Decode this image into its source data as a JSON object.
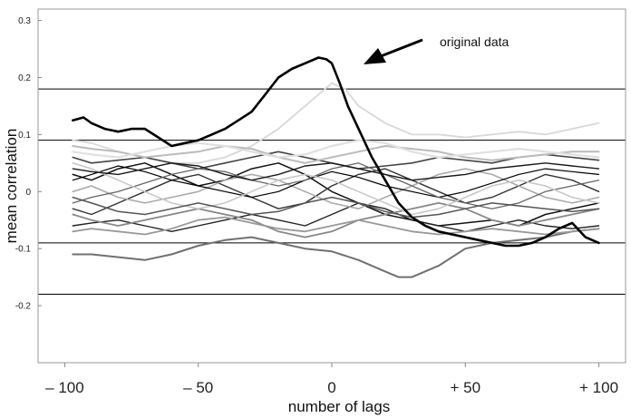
{
  "chart_data": {
    "type": "line",
    "xlabel": "number of lags",
    "ylabel": "mean correlation",
    "xlim": [
      -110,
      110
    ],
    "ylim": [
      -0.3,
      0.32
    ],
    "x_ticks": [
      {
        "value": -100,
        "label": "– 100"
      },
      {
        "value": -50,
        "label": "– 50"
      },
      {
        "value": 0,
        "label": "0"
      },
      {
        "value": 50,
        "label": "+ 50"
      },
      {
        "value": 100,
        "label": "+ 100"
      }
    ],
    "y_ticks": [
      {
        "value": 0.3,
        "label": "0.3"
      },
      {
        "value": 0.2,
        "label": "0.2"
      },
      {
        "value": 0.1,
        "label": "0.1"
      },
      {
        "value": 0,
        "label": "0"
      },
      {
        "value": -0.1,
        "label": "-0.1"
      },
      {
        "value": -0.2,
        "label": "-0.2"
      }
    ],
    "reference_lines": [
      0.18,
      0.09,
      -0.09,
      -0.18
    ],
    "annotation": {
      "text": "original data",
      "x": 10,
      "y": 0.24
    },
    "series": [
      {
        "x": [
          -97,
          -93,
          -90,
          -85,
          -80,
          -75,
          -70,
          -65,
          -60,
          -55,
          -50,
          -45,
          -40,
          -35,
          -30,
          -25,
          -20,
          -15,
          -10,
          -5,
          -2,
          0,
          3,
          6,
          10,
          15,
          20,
          25,
          30,
          35,
          40,
          45,
          50,
          55,
          60,
          65,
          70,
          75,
          80,
          85,
          90,
          95,
          100
        ],
        "values": [
          0.125,
          0.13,
          0.12,
          0.11,
          0.105,
          0.11,
          0.11,
          0.095,
          0.08,
          0.085,
          0.09,
          0.1,
          0.11,
          0.125,
          0.14,
          0.17,
          0.2,
          0.215,
          0.225,
          0.235,
          0.232,
          0.225,
          0.19,
          0.15,
          0.11,
          0.06,
          0.02,
          -0.02,
          -0.045,
          -0.06,
          -0.07,
          -0.075,
          -0.08,
          -0.085,
          -0.09,
          -0.095,
          -0.095,
          -0.09,
          -0.08,
          -0.065,
          -0.055,
          -0.08,
          -0.09
        ],
        "color": "#000000",
        "width": 2.6
      },
      {
        "x": [
          -97,
          -90,
          -80,
          -70,
          -60,
          -50,
          -40,
          -30,
          -20,
          -10,
          0,
          5,
          10,
          20,
          30,
          40,
          50,
          60,
          70,
          80,
          90,
          100
        ],
        "values": [
          0.09,
          0.085,
          0.07,
          0.06,
          0.05,
          0.05,
          0.06,
          0.08,
          0.11,
          0.15,
          0.19,
          0.18,
          0.15,
          0.12,
          0.1,
          0.1,
          0.095,
          0.1,
          0.105,
          0.1,
          0.11,
          0.12
        ],
        "color": "#d8d8d8",
        "width": 1.8
      },
      {
        "x": [
          -97,
          -90,
          -80,
          -70,
          -60,
          -50,
          -40,
          -30,
          -20,
          -10,
          0,
          10,
          20,
          25,
          30,
          40,
          50,
          60,
          70,
          80,
          90,
          100
        ],
        "values": [
          -0.11,
          -0.11,
          -0.115,
          -0.12,
          -0.11,
          -0.095,
          -0.085,
          -0.08,
          -0.09,
          -0.1,
          -0.105,
          -0.12,
          -0.14,
          -0.15,
          -0.15,
          -0.13,
          -0.1,
          -0.09,
          -0.085,
          -0.08,
          -0.07,
          -0.065
        ],
        "color": "#707070",
        "width": 2.0
      },
      {
        "x": [
          -97,
          -90,
          -80,
          -70,
          -60,
          -50,
          -40,
          -30,
          -20,
          -10,
          0,
          10,
          20,
          30,
          40,
          50,
          60,
          70,
          80,
          90,
          100
        ],
        "values": [
          0.03,
          0.02,
          0.04,
          0.05,
          0.03,
          0.01,
          0.02,
          0.04,
          0.05,
          0.03,
          0.0,
          -0.02,
          -0.04,
          -0.05,
          -0.06,
          -0.055,
          -0.05,
          -0.06,
          -0.04,
          -0.03,
          -0.02
        ],
        "color": "#111111",
        "width": 1.5
      },
      {
        "x": [
          -97,
          -90,
          -80,
          -70,
          -60,
          -50,
          -40,
          -30,
          -20,
          -10,
          0,
          10,
          20,
          30,
          40,
          50,
          60,
          70,
          80,
          90,
          100
        ],
        "values": [
          -0.03,
          -0.04,
          -0.02,
          0.0,
          0.02,
          0.03,
          0.01,
          -0.01,
          -0.03,
          -0.02,
          0.01,
          0.03,
          0.04,
          0.02,
          0.0,
          -0.02,
          -0.01,
          0.01,
          0.03,
          0.02,
          0.0
        ],
        "color": "#333333",
        "width": 1.4
      },
      {
        "x": [
          -97,
          -90,
          -80,
          -70,
          -60,
          -50,
          -40,
          -30,
          -20,
          -10,
          0,
          10,
          20,
          30,
          40,
          50,
          60,
          70,
          80,
          90,
          100
        ],
        "values": [
          0.06,
          0.05,
          0.055,
          0.06,
          0.05,
          0.04,
          0.05,
          0.06,
          0.07,
          0.06,
          0.05,
          0.04,
          0.045,
          0.05,
          0.06,
          0.055,
          0.05,
          0.06,
          0.065,
          0.06,
          0.055
        ],
        "color": "#444444",
        "width": 1.6
      },
      {
        "x": [
          -97,
          -90,
          -80,
          -70,
          -60,
          -50,
          -40,
          -30,
          -20,
          -10,
          0,
          10,
          20,
          30,
          40,
          50,
          60,
          70,
          80,
          90,
          100
        ],
        "values": [
          -0.06,
          -0.055,
          -0.05,
          -0.06,
          -0.07,
          -0.06,
          -0.05,
          -0.04,
          -0.05,
          -0.06,
          -0.04,
          -0.02,
          -0.03,
          -0.05,
          -0.06,
          -0.07,
          -0.06,
          -0.05,
          -0.06,
          -0.065,
          -0.06
        ],
        "color": "#222222",
        "width": 1.4
      },
      {
        "x": [
          -97,
          -90,
          -80,
          -70,
          -60,
          -50,
          -40,
          -30,
          -20,
          -10,
          0,
          10,
          20,
          30,
          40,
          50,
          60,
          70,
          80,
          90,
          100
        ],
        "values": [
          0.0,
          0.01,
          -0.01,
          -0.02,
          -0.01,
          0.0,
          0.02,
          0.03,
          0.02,
          0.0,
          -0.02,
          -0.03,
          -0.01,
          0.01,
          0.03,
          0.04,
          0.03,
          0.01,
          -0.01,
          -0.02,
          -0.01
        ],
        "color": "#aaaaaa",
        "width": 1.6
      },
      {
        "x": [
          -97,
          -90,
          -80,
          -70,
          -60,
          -50,
          -40,
          -30,
          -20,
          -10,
          0,
          10,
          20,
          30,
          40,
          50,
          60,
          70,
          80,
          90,
          100
        ],
        "values": [
          0.08,
          0.075,
          0.07,
          0.06,
          0.065,
          0.07,
          0.08,
          0.075,
          0.06,
          0.05,
          0.06,
          0.07,
          0.08,
          0.075,
          0.07,
          0.06,
          0.055,
          0.06,
          0.065,
          0.07,
          0.07
        ],
        "color": "#bbbbbb",
        "width": 2.0
      },
      {
        "x": [
          -97,
          -90,
          -80,
          -70,
          -60,
          -50,
          -40,
          -30,
          -20,
          -10,
          0,
          10,
          20,
          30,
          40,
          50,
          60,
          70,
          80,
          90,
          100
        ],
        "values": [
          -0.04,
          -0.05,
          -0.06,
          -0.05,
          -0.04,
          -0.03,
          -0.04,
          -0.05,
          -0.07,
          -0.08,
          -0.07,
          -0.05,
          -0.04,
          -0.03,
          -0.02,
          -0.03,
          -0.05,
          -0.06,
          -0.05,
          -0.04,
          -0.03
        ],
        "color": "#888888",
        "width": 1.8
      },
      {
        "x": [
          -97,
          -90,
          -80,
          -70,
          -60,
          -50,
          -40,
          -30,
          -20,
          -10,
          0,
          10,
          20,
          30,
          40,
          50,
          60,
          70,
          80,
          90,
          100
        ],
        "values": [
          0.02,
          0.03,
          0.045,
          0.035,
          0.02,
          0.01,
          0.0,
          -0.01,
          0.0,
          0.02,
          0.035,
          0.025,
          0.01,
          0.0,
          -0.01,
          0.0,
          0.015,
          0.03,
          0.04,
          0.035,
          0.03
        ],
        "color": "#000000",
        "width": 1.2
      },
      {
        "x": [
          -97,
          -90,
          -80,
          -70,
          -60,
          -50,
          -40,
          -30,
          -20,
          -10,
          0,
          10,
          20,
          30,
          40,
          50,
          60,
          70,
          80,
          90,
          100
        ],
        "values": [
          -0.02,
          -0.01,
          0.0,
          0.015,
          0.03,
          0.04,
          0.035,
          0.02,
          0.01,
          0.02,
          0.04,
          0.05,
          0.03,
          0.01,
          -0.01,
          -0.02,
          -0.03,
          -0.02,
          0.0,
          0.01,
          0.02
        ],
        "color": "#666666",
        "width": 1.3
      },
      {
        "x": [
          -97,
          -90,
          -80,
          -70,
          -60,
          -50,
          -40,
          -30,
          -20,
          -10,
          0,
          10,
          20,
          30,
          40,
          50,
          60,
          70,
          80,
          90,
          100
        ],
        "values": [
          0.05,
          0.04,
          0.02,
          0.0,
          -0.02,
          -0.03,
          -0.02,
          0.0,
          0.02,
          0.03,
          0.02,
          0.0,
          -0.02,
          -0.04,
          -0.03,
          -0.01,
          0.01,
          0.02,
          0.01,
          -0.01,
          -0.02
        ],
        "color": "#c8c8c8",
        "width": 1.6
      },
      {
        "x": [
          -97,
          -90,
          -80,
          -70,
          -60,
          -50,
          -40,
          -30,
          -20,
          -10,
          0,
          10,
          20,
          30,
          40,
          50,
          60,
          70,
          80,
          90,
          100
        ],
        "values": [
          -0.07,
          -0.065,
          -0.07,
          -0.075,
          -0.065,
          -0.05,
          -0.045,
          -0.055,
          -0.065,
          -0.07,
          -0.06,
          -0.05,
          -0.06,
          -0.07,
          -0.075,
          -0.07,
          -0.065,
          -0.07,
          -0.075,
          -0.07,
          -0.065
        ],
        "color": "#999999",
        "width": 1.8
      },
      {
        "x": [
          -97,
          -90,
          -80,
          -70,
          -60,
          -50,
          -40,
          -30,
          -20,
          -10,
          0,
          10,
          20,
          30,
          40,
          50,
          60,
          70,
          80,
          90,
          100
        ],
        "values": [
          0.04,
          0.035,
          0.03,
          0.04,
          0.05,
          0.045,
          0.03,
          0.02,
          0.03,
          0.045,
          0.05,
          0.04,
          0.03,
          0.02,
          0.025,
          0.03,
          0.04,
          0.045,
          0.05,
          0.045,
          0.04
        ],
        "color": "#1a1a1a",
        "width": 1.4
      },
      {
        "x": [
          -97,
          -90,
          -80,
          -70,
          -60,
          -50,
          -40,
          -30,
          -20,
          -10,
          0,
          10,
          20,
          30,
          40,
          50,
          60,
          70,
          80,
          90,
          100
        ],
        "values": [
          -0.01,
          -0.02,
          -0.035,
          -0.04,
          -0.03,
          -0.02,
          -0.03,
          -0.04,
          -0.035,
          -0.02,
          -0.01,
          -0.02,
          -0.035,
          -0.045,
          -0.04,
          -0.03,
          -0.02,
          -0.025,
          -0.03,
          -0.035,
          -0.03
        ],
        "color": "#555555",
        "width": 1.5
      },
      {
        "x": [
          -97,
          -90,
          -80,
          -70,
          -60,
          -50,
          -40,
          -30,
          -20,
          -10,
          0,
          10,
          20,
          30,
          40,
          50,
          60,
          70,
          80,
          90,
          100
        ],
        "values": [
          0.07,
          0.065,
          0.06,
          0.07,
          0.08,
          0.085,
          0.08,
          0.07,
          0.06,
          0.065,
          0.08,
          0.09,
          0.085,
          0.07,
          0.06,
          0.065,
          0.07,
          0.075,
          0.07,
          0.065,
          0.06
        ],
        "color": "#e0e0e0",
        "width": 2.2
      }
    ]
  }
}
